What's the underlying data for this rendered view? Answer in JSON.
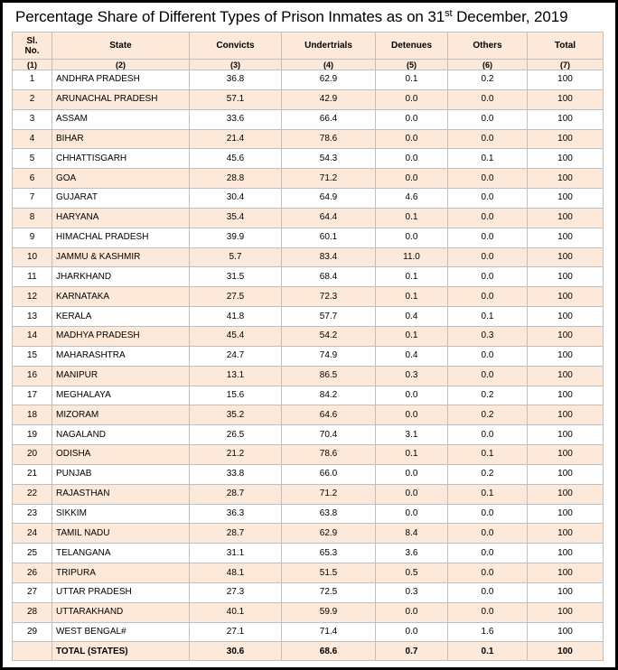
{
  "title": {
    "main": "Percentage Share of Different Types of Prison Inmates as on 31",
    "sup": "st",
    "tail": " December, 2019"
  },
  "columns": [
    {
      "label_1": "Sl.",
      "label_2": "No.",
      "num": "(1)"
    },
    {
      "label_1": "State",
      "label_2": "",
      "num": "(2)"
    },
    {
      "label_1": "Convicts",
      "label_2": "",
      "num": "(3)"
    },
    {
      "label_1": "Undertrials",
      "label_2": "",
      "num": "(4)"
    },
    {
      "label_1": "Detenues",
      "label_2": "",
      "num": "(5)"
    },
    {
      "label_1": "Others",
      "label_2": "",
      "num": "(6)"
    },
    {
      "label_1": "Total",
      "label_2": "",
      "num": "(7)"
    }
  ],
  "rows": [
    [
      "1",
      "ANDHRA PRADESH",
      "36.8",
      "62.9",
      "0.1",
      "0.2",
      "100"
    ],
    [
      "2",
      "ARUNACHAL PRADESH",
      "57.1",
      "42.9",
      "0.0",
      "0.0",
      "100"
    ],
    [
      "3",
      "ASSAM",
      "33.6",
      "66.4",
      "0.0",
      "0.0",
      "100"
    ],
    [
      "4",
      "BIHAR",
      "21.4",
      "78.6",
      "0.0",
      "0.0",
      "100"
    ],
    [
      "5",
      "CHHATTISGARH",
      "45.6",
      "54.3",
      "0.0",
      "0.1",
      "100"
    ],
    [
      "6",
      "GOA",
      "28.8",
      "71.2",
      "0.0",
      "0.0",
      "100"
    ],
    [
      "7",
      "GUJARAT",
      "30.4",
      "64.9",
      "4.6",
      "0.0",
      "100"
    ],
    [
      "8",
      "HARYANA",
      "35.4",
      "64.4",
      "0.1",
      "0.0",
      "100"
    ],
    [
      "9",
      "HIMACHAL PRADESH",
      "39.9",
      "60.1",
      "0.0",
      "0.0",
      "100"
    ],
    [
      "10",
      "JAMMU & KASHMIR",
      "5.7",
      "83.4",
      "11.0",
      "0.0",
      "100"
    ],
    [
      "11",
      "JHARKHAND",
      "31.5",
      "68.4",
      "0.1",
      "0.0",
      "100"
    ],
    [
      "12",
      "KARNATAKA",
      "27.5",
      "72.3",
      "0.1",
      "0.0",
      "100"
    ],
    [
      "13",
      "KERALA",
      "41.8",
      "57.7",
      "0.4",
      "0.1",
      "100"
    ],
    [
      "14",
      "MADHYA PRADESH",
      "45.4",
      "54.2",
      "0.1",
      "0.3",
      "100"
    ],
    [
      "15",
      "MAHARASHTRA",
      "24.7",
      "74.9",
      "0.4",
      "0.0",
      "100"
    ],
    [
      "16",
      "MANIPUR",
      "13.1",
      "86.5",
      "0.3",
      "0.0",
      "100"
    ],
    [
      "17",
      "MEGHALAYA",
      "15.6",
      "84.2",
      "0.0",
      "0.2",
      "100"
    ],
    [
      "18",
      "MIZORAM",
      "35.2",
      "64.6",
      "0.0",
      "0.2",
      "100"
    ],
    [
      "19",
      "NAGALAND",
      "26.5",
      "70.4",
      "3.1",
      "0.0",
      "100"
    ],
    [
      "20",
      "ODISHA",
      "21.2",
      "78.6",
      "0.1",
      "0.1",
      "100"
    ],
    [
      "21",
      "PUNJAB",
      "33.8",
      "66.0",
      "0.0",
      "0.2",
      "100"
    ],
    [
      "22",
      "RAJASTHAN",
      "28.7",
      "71.2",
      "0.0",
      "0.1",
      "100"
    ],
    [
      "23",
      "SIKKIM",
      "36.3",
      "63.8",
      "0.0",
      "0.0",
      "100"
    ],
    [
      "24",
      "TAMIL NADU",
      "28.7",
      "62.9",
      "8.4",
      "0.0",
      "100"
    ],
    [
      "25",
      "TELANGANA",
      "31.1",
      "65.3",
      "3.6",
      "0.0",
      "100"
    ],
    [
      "26",
      "TRIPURA",
      "48.1",
      "51.5",
      "0.5",
      "0.0",
      "100"
    ],
    [
      "27",
      "UTTAR PRADESH",
      "27.3",
      "72.5",
      "0.3",
      "0.0",
      "100"
    ],
    [
      "28",
      "UTTARAKHAND",
      "40.1",
      "59.9",
      "0.0",
      "0.0",
      "100"
    ],
    [
      "29",
      "WEST BENGAL#",
      "27.1",
      "71.4",
      "0.0",
      "1.6",
      "100"
    ]
  ],
  "total_row": [
    "",
    "TOTAL (STATES)",
    "30.6",
    "68.6",
    "0.7",
    "0.1",
    "100"
  ],
  "colors": {
    "header_fill": "#fde9d9",
    "stripe_fill": "#fde9d9",
    "border": "#bfbfbf"
  }
}
